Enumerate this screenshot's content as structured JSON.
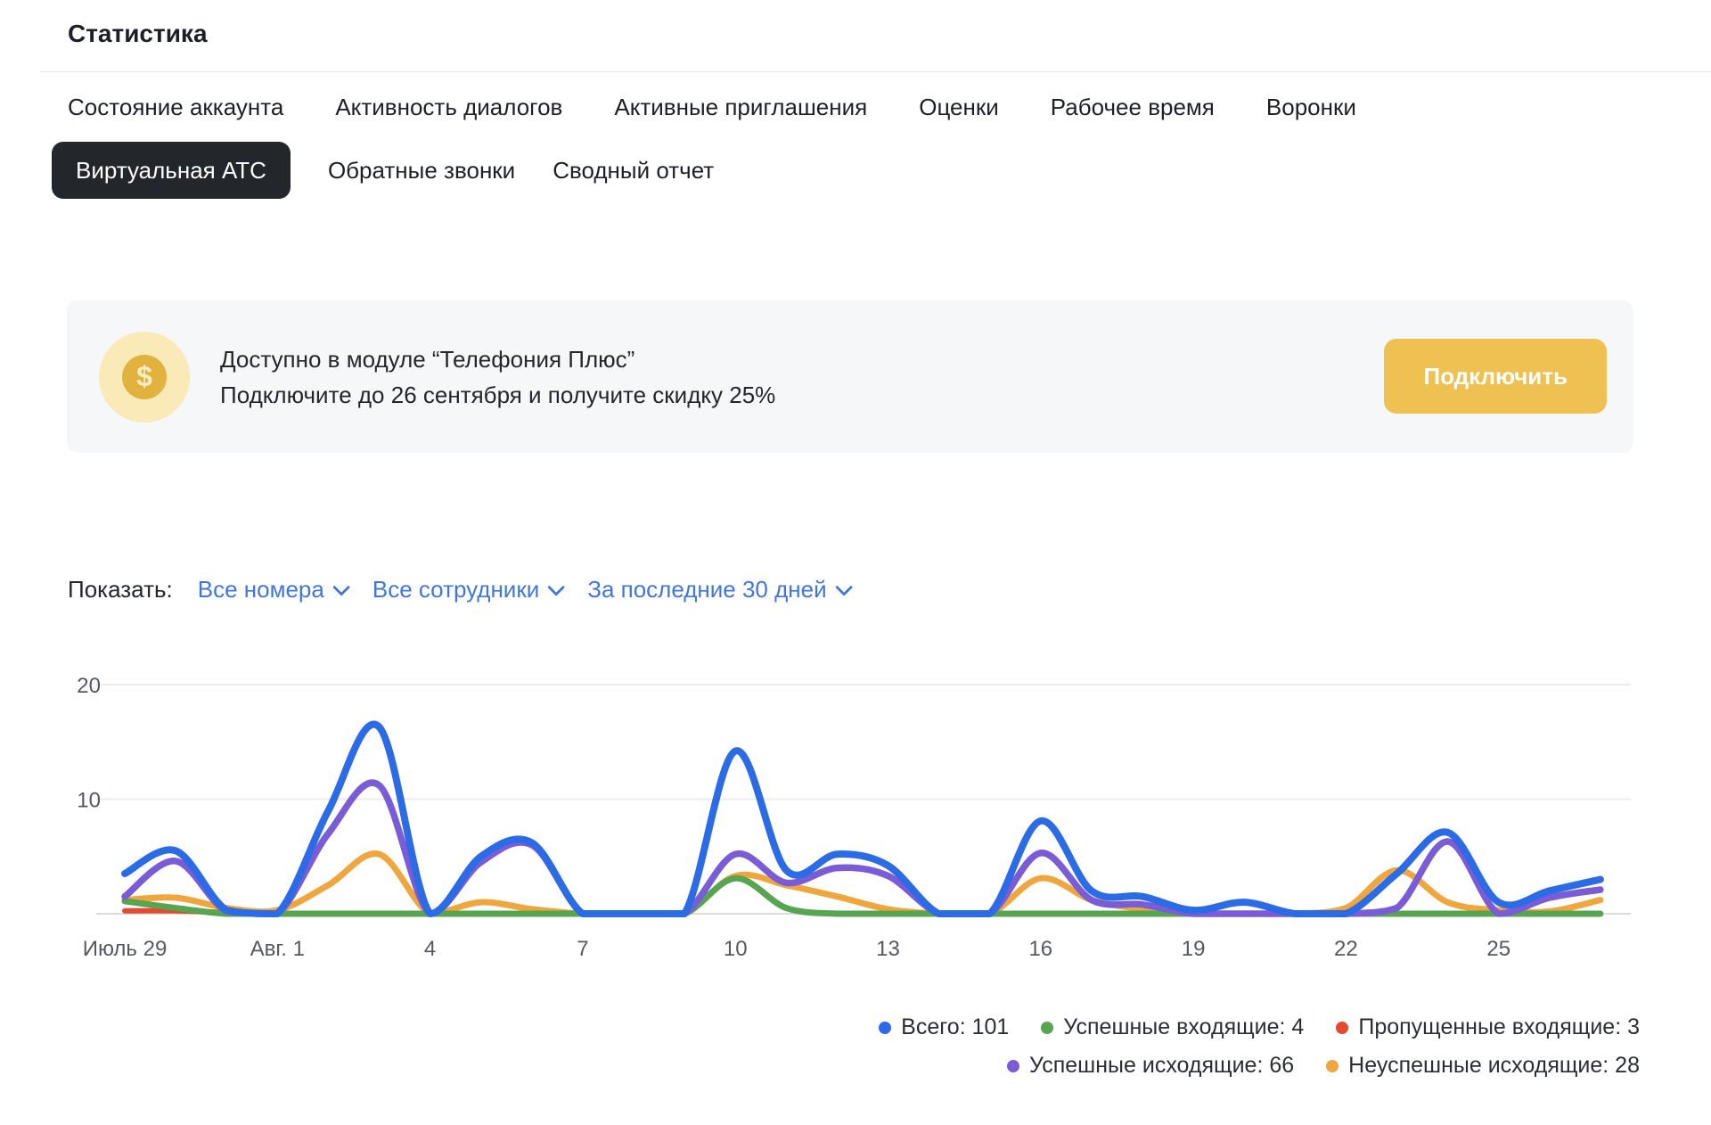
{
  "page": {
    "title": "Статистика"
  },
  "tabs": {
    "row1": [
      "Состояние аккаунта",
      "Активность диалогов",
      "Активные приглашения",
      "Оценки",
      "Рабочее время",
      "Воронки"
    ],
    "row2": [
      {
        "label": "Виртуальная АТС",
        "active": true
      },
      {
        "label": "Обратные звонки",
        "active": false
      },
      {
        "label": "Сводный отчет",
        "active": false
      }
    ]
  },
  "banner": {
    "icon": "dollar-icon",
    "line1": "Доступно в модуле “Телефония Плюс”",
    "line2": "Подключите до 26 сентября и получите скидку 25%",
    "button_label": "Подключить",
    "colors": {
      "background": "#f6f7f9",
      "button": "#efc052",
      "icon_outer": "#f9eab8",
      "icon_inner": "#e2b23e"
    }
  },
  "filters": {
    "label": "Показать:",
    "dropdowns": [
      "Все номера",
      "Все сотрудники",
      "За последние 30 дней"
    ],
    "accent_color": "#4276d8"
  },
  "chart_data": {
    "type": "line",
    "smooth": true,
    "grid": true,
    "ylim": [
      0,
      20
    ],
    "yticks": [
      10,
      20
    ],
    "legend_position": "bottom-right",
    "x_dates": [
      "Июль 29",
      "Июль 30",
      "Июль 31",
      "Авг. 1",
      "Авг. 2",
      "Авг. 3",
      "Авг. 4",
      "Авг. 5",
      "Авг. 6",
      "Авг. 7",
      "Авг. 8",
      "Авг. 9",
      "Авг. 10",
      "Авг. 11",
      "Авг. 12",
      "Авг. 13",
      "Авг. 14",
      "Авг. 15",
      "Авг. 16",
      "Авг. 17",
      "Авг. 18",
      "Авг. 19",
      "Авг. 20",
      "Авг. 21",
      "Авг. 22",
      "Авг. 23",
      "Авг. 24",
      "Авг. 25",
      "Авг. 26",
      "Авг. 27"
    ],
    "xticks": [
      {
        "index": 0,
        "label": "Июль 29"
      },
      {
        "index": 3,
        "label": "Авг. 1"
      },
      {
        "index": 6,
        "label": "4"
      },
      {
        "index": 9,
        "label": "7"
      },
      {
        "index": 12,
        "label": "10"
      },
      {
        "index": 15,
        "label": "13"
      },
      {
        "index": 18,
        "label": "16"
      },
      {
        "index": 21,
        "label": "19"
      },
      {
        "index": 24,
        "label": "22"
      },
      {
        "index": 27,
        "label": "25"
      }
    ],
    "series": [
      {
        "id": "total",
        "name": "Всего",
        "total": 101,
        "color": "#2c6be6",
        "values": [
          3.5,
          5.5,
          0.3,
          0,
          9,
          16.3,
          0,
          5,
          6.2,
          0,
          0,
          0,
          14.2,
          3.8,
          5.2,
          4.2,
          0,
          0,
          8.1,
          2,
          1.5,
          0.3,
          1,
          0,
          0,
          3.5,
          7.1,
          1,
          2,
          3
        ]
      },
      {
        "id": "in_ok",
        "name": "Успешные входящие",
        "total": 4,
        "color": "#57a451",
        "values": [
          1.1,
          0.5,
          0,
          0,
          0,
          0,
          0,
          0,
          0,
          0,
          0,
          0,
          3.1,
          0.5,
          0,
          0,
          0,
          0,
          0,
          0,
          0,
          0,
          0,
          0,
          0,
          0,
          0,
          0,
          0,
          0
        ]
      },
      {
        "id": "in_missed",
        "name": "Пропущенные входящие",
        "total": 3,
        "color": "#e5492f",
        "values": [
          0.25,
          0.25,
          0.1
        ]
      },
      {
        "id": "out_ok",
        "name": "Успешные исходящие",
        "total": 66,
        "color": "#7a5cd6",
        "values": [
          1.5,
          4.6,
          0.2,
          0,
          7,
          11.2,
          0,
          4.5,
          6,
          0,
          0,
          0,
          5.2,
          2.7,
          4,
          3.3,
          0,
          0,
          5.3,
          1.2,
          0.8,
          0,
          0,
          0,
          0,
          0.5,
          6.3,
          0,
          1.4,
          2.1
        ]
      },
      {
        "id": "out_fail",
        "name": "Неуспешные исходящие",
        "total": 28,
        "color": "#efa63e",
        "values": [
          1.2,
          1.4,
          0.5,
          0.3,
          2.5,
          5.2,
          0,
          1,
          0.4,
          0,
          0,
          0,
          3.3,
          2.5,
          1.5,
          0.4,
          0,
          0,
          3.1,
          1.2,
          0.4,
          0,
          0,
          0,
          0.5,
          3.8,
          1,
          0.3,
          0.2,
          1.2
        ]
      }
    ],
    "draw_order": [
      "in_missed",
      "out_fail",
      "in_ok",
      "out_ok",
      "total"
    ],
    "legend_rows": [
      [
        "total",
        "in_ok",
        "in_missed"
      ],
      [
        "out_ok",
        "out_fail"
      ]
    ]
  }
}
